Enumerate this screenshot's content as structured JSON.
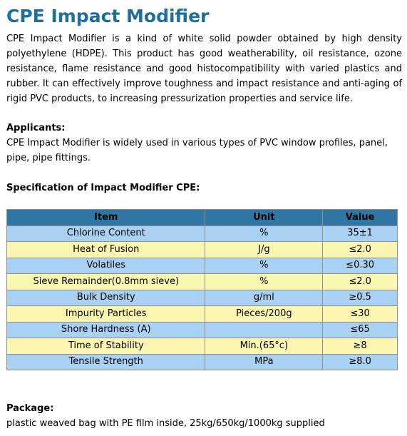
{
  "title": "CPE Impact Modifier",
  "intro": "CPE Impact Modifier is a kind of white solid powder obtained by high density polyethylene (HDPE). This product has good weatherability, oil resistance, ozone resistance, flame resistance and good histocompatibility with varied plastics and rubber. It can effectively improve toughness and impact resistance and anti-aging of rigid PVC products, to increasing pressurization properties and service life.",
  "applicants": {
    "heading": "Applicants:",
    "text": "CPE Impact Modifier is widely used in various types of PVC window profiles, panel, pipe, pipe fittings."
  },
  "specification": {
    "heading": "Specification of Impact Modifier CPE:",
    "columns": [
      "Item",
      "Unit",
      "Value"
    ],
    "rows": [
      {
        "item": "Chlorine Content",
        "unit": "%",
        "value": "35±1"
      },
      {
        "item": "Heat of Fusion",
        "unit": "J/g",
        "value": "≤2.0"
      },
      {
        "item": "Volatiles",
        "unit": "%",
        "value": "≤0.30"
      },
      {
        "item": "Sieve Remainder(0.8mm sieve)",
        "unit": "%",
        "value": "≤2.0"
      },
      {
        "item": "Bulk Density",
        "unit": "g/ml",
        "value": "≥0.5"
      },
      {
        "item": "Impurity Particles",
        "unit": "Pieces/200g",
        "value": "≤30"
      },
      {
        "item": "Shore Hardness (A)",
        "unit": "",
        "value": "≤65"
      },
      {
        "item": "Time of Stability",
        "unit": "Min.(65°c)",
        "value": "≥8"
      },
      {
        "item": "Tensile Strength",
        "unit": "MPa",
        "value": "≥8.0"
      }
    ]
  },
  "package": {
    "heading": "Package:",
    "text": "plastic weaved bag with PE film inside, 25kg/650kg/1000kg supplied"
  },
  "colors": {
    "title": "#1f6f9c",
    "header_bg": "#2f76a5",
    "row_blue": "#a9d1f3",
    "row_yellow": "#fcf7b0"
  }
}
